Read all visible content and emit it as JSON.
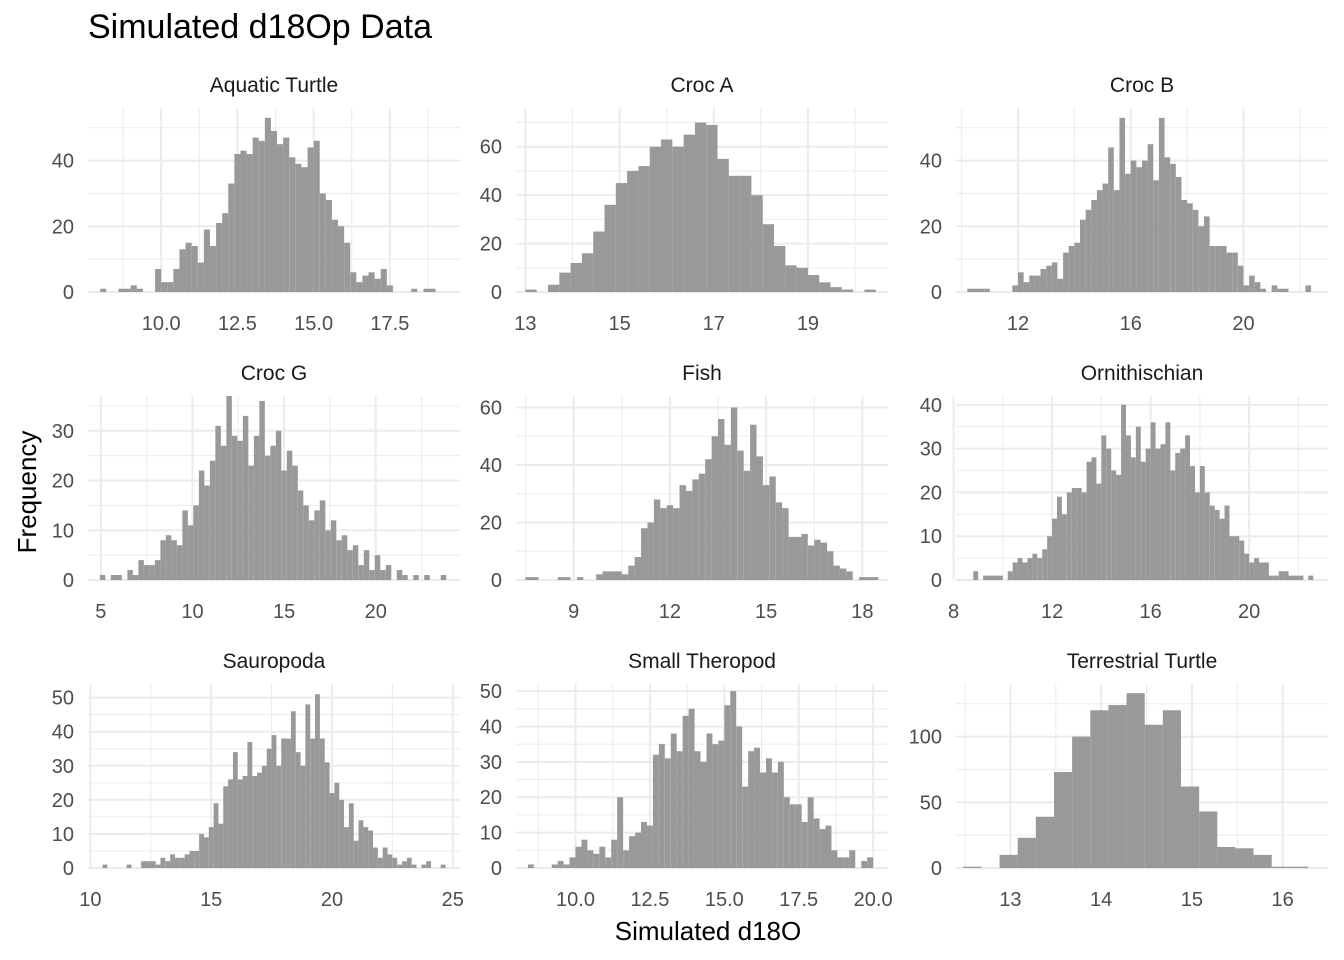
{
  "chart_data": {
    "type": "bar",
    "title": "Simulated d18Op Data",
    "xlabel": "Simulated d18O",
    "ylabel": "Frequency",
    "grid": true,
    "legend": "none",
    "bar_color": "#999999",
    "grid_color": "#ebebeb",
    "panels": [
      {
        "name": "Aquatic Turtle",
        "xlim": [
          7.6,
          19.8
        ],
        "ylim": [
          0,
          56
        ],
        "xticks": [
          10.0,
          12.5,
          15.0,
          17.5
        ],
        "xtick_labels": [
          "10.0",
          "12.5",
          "15.0",
          "17.5"
        ],
        "yticks": [
          0,
          20,
          40
        ],
        "x": [
          8.1,
          8.3,
          8.5,
          8.7,
          8.9,
          9.1,
          9.3,
          9.5,
          9.7,
          9.9,
          10.1,
          10.3,
          10.5,
          10.7,
          10.9,
          11.1,
          11.3,
          11.5,
          11.7,
          11.9,
          12.1,
          12.3,
          12.5,
          12.7,
          12.9,
          13.1,
          13.3,
          13.5,
          13.7,
          13.9,
          14.1,
          14.3,
          14.5,
          14.7,
          14.9,
          15.1,
          15.3,
          15.5,
          15.7,
          15.9,
          16.1,
          16.3,
          16.5,
          16.7,
          16.9,
          17.1,
          17.3,
          17.5,
          17.7,
          17.9,
          18.1,
          18.3,
          18.5,
          18.7,
          18.9,
          19.1,
          19.3
        ],
        "values": [
          1,
          0,
          0,
          1,
          1,
          2,
          1,
          0,
          0,
          7,
          3,
          3,
          7,
          13,
          15,
          14,
          9,
          19,
          14,
          21,
          24,
          33,
          42,
          43,
          42,
          47,
          46,
          53,
          49,
          45,
          47,
          41,
          39,
          38,
          44,
          46,
          30,
          28,
          22,
          20,
          15,
          6,
          3,
          5,
          6,
          4,
          7,
          2,
          0,
          0,
          0,
          1,
          0,
          1,
          1,
          0,
          0
        ],
        "bar_width": 0.2
      },
      {
        "name": "Croc A",
        "xlim": [
          12.8,
          20.7
        ],
        "ylim": [
          0,
          76
        ],
        "xticks": [
          13,
          15,
          17,
          19
        ],
        "xtick_labels": [
          "13",
          "15",
          "17",
          "19"
        ],
        "yticks": [
          0,
          20,
          40,
          60
        ],
        "x": [
          13.12,
          13.36,
          13.6,
          13.84,
          14.08,
          14.32,
          14.56,
          14.8,
          15.04,
          15.28,
          15.52,
          15.76,
          16.0,
          16.24,
          16.48,
          16.72,
          16.96,
          17.2,
          17.44,
          17.68,
          17.92,
          18.16,
          18.4,
          18.64,
          18.88,
          19.12,
          19.36,
          19.6,
          19.84,
          20.08,
          20.32
        ],
        "values": [
          1,
          0,
          3,
          8,
          12,
          16,
          25,
          36,
          45,
          50,
          52,
          60,
          63,
          60,
          65,
          70,
          69,
          55,
          48,
          48,
          40,
          28,
          19,
          11,
          10,
          7,
          4,
          2,
          1,
          0,
          1
        ],
        "bar_width": 0.24
      },
      {
        "name": "Croc B",
        "xlim": [
          9.8,
          23.0
        ],
        "ylim": [
          0,
          56
        ],
        "xticks": [
          12,
          16,
          20
        ],
        "xtick_labels": [
          "12",
          "16",
          "20"
        ],
        "yticks": [
          0,
          20,
          40
        ],
        "x": [
          10.3,
          10.5,
          10.7,
          10.9,
          11.1,
          11.3,
          11.5,
          11.7,
          11.9,
          12.1,
          12.3,
          12.5,
          12.7,
          12.9,
          13.1,
          13.3,
          13.5,
          13.7,
          13.9,
          14.1,
          14.3,
          14.5,
          14.7,
          14.9,
          15.1,
          15.3,
          15.5,
          15.7,
          15.9,
          16.1,
          16.3,
          16.5,
          16.7,
          16.9,
          17.1,
          17.3,
          17.5,
          17.7,
          17.9,
          18.1,
          18.3,
          18.5,
          18.7,
          18.9,
          19.1,
          19.3,
          19.5,
          19.7,
          19.9,
          20.1,
          20.3,
          20.5,
          20.7,
          20.9,
          21.1,
          21.3,
          21.5,
          21.7,
          21.9,
          22.1,
          22.3
        ],
        "values": [
          1,
          1,
          1,
          1,
          0,
          0,
          0,
          0,
          2,
          6,
          3,
          5,
          5,
          7,
          8,
          9,
          4,
          12,
          14,
          15,
          22,
          25,
          28,
          31,
          33,
          44,
          31,
          53,
          36,
          40,
          38,
          40,
          45,
          34,
          53,
          41,
          39,
          35,
          28,
          27,
          25,
          20,
          23,
          14,
          14,
          14,
          12,
          12,
          8,
          2,
          5,
          3,
          1,
          0,
          2,
          1,
          1,
          0,
          0,
          0,
          2
        ],
        "bar_width": 0.2
      },
      {
        "name": "Croc G",
        "xlim": [
          4.3,
          24.6
        ],
        "ylim": [
          0,
          37
        ],
        "xticks": [
          5,
          10,
          15,
          20
        ],
        "xtick_labels": [
          "5",
          "10",
          "15",
          "20"
        ],
        "yticks": [
          0,
          10,
          20,
          30
        ],
        "x": [
          5.1,
          5.4,
          5.7,
          6.0,
          6.3,
          6.6,
          6.9,
          7.2,
          7.5,
          7.8,
          8.1,
          8.4,
          8.7,
          9.0,
          9.3,
          9.6,
          9.9,
          10.2,
          10.5,
          10.8,
          11.1,
          11.4,
          11.7,
          12.0,
          12.3,
          12.6,
          12.9,
          13.2,
          13.5,
          13.8,
          14.1,
          14.4,
          14.7,
          15.0,
          15.3,
          15.6,
          15.9,
          16.2,
          16.5,
          16.8,
          17.1,
          17.4,
          17.7,
          18.0,
          18.3,
          18.6,
          18.9,
          19.2,
          19.5,
          19.8,
          20.1,
          20.4,
          20.7,
          21.0,
          21.3,
          21.6,
          21.9,
          22.2,
          22.5,
          22.8,
          23.1,
          23.4,
          23.7
        ],
        "values": [
          1,
          0,
          1,
          1,
          0,
          2,
          1,
          4,
          3,
          3,
          4,
          8,
          9,
          8,
          7,
          14,
          11,
          15,
          22,
          19,
          24,
          31,
          27,
          37,
          29,
          28,
          33,
          23,
          29,
          36,
          25,
          27,
          30,
          22,
          26,
          23,
          18,
          15,
          12,
          14,
          16,
          10,
          12,
          8,
          9,
          6,
          7,
          3,
          6,
          2,
          5,
          2,
          3,
          0,
          2,
          1,
          0,
          1,
          0,
          1,
          0,
          0,
          1
        ],
        "bar_width": 0.3
      },
      {
        "name": "Fish",
        "xlim": [
          7.2,
          18.8
        ],
        "ylim": [
          0,
          64
        ],
        "xticks": [
          9,
          12,
          15,
          18
        ],
        "xtick_labels": [
          "9",
          "12",
          "15",
          "18"
        ],
        "yticks": [
          0,
          20,
          40,
          60
        ],
        "x": [
          7.6,
          7.8,
          8.0,
          8.2,
          8.4,
          8.6,
          8.8,
          9.0,
          9.2,
          9.4,
          9.6,
          9.8,
          10.0,
          10.2,
          10.4,
          10.6,
          10.8,
          11.0,
          11.2,
          11.4,
          11.6,
          11.8,
          12.0,
          12.2,
          12.4,
          12.6,
          12.8,
          13.0,
          13.2,
          13.4,
          13.6,
          13.8,
          14.0,
          14.2,
          14.4,
          14.6,
          14.8,
          15.0,
          15.2,
          15.4,
          15.6,
          15.8,
          16.0,
          16.2,
          16.4,
          16.6,
          16.8,
          17.0,
          17.2,
          17.4,
          17.6,
          17.8,
          18.0,
          18.2,
          18.4
        ],
        "values": [
          1,
          1,
          0,
          0,
          0,
          1,
          1,
          0,
          1,
          0,
          0,
          2,
          3,
          3,
          3,
          2,
          5,
          8,
          18,
          20,
          28,
          25,
          26,
          25,
          33,
          31,
          35,
          37,
          42,
          50,
          56,
          47,
          60,
          45,
          38,
          54,
          43,
          33,
          36,
          27,
          25,
          15,
          15,
          16,
          12,
          14,
          13,
          10,
          5,
          4,
          3,
          0,
          1,
          1,
          1
        ],
        "bar_width": 0.2
      },
      {
        "name": "Ornithischian",
        "xlim": [
          8.1,
          23.2
        ],
        "ylim": [
          0,
          42
        ],
        "xticks": [
          8,
          12,
          16,
          20
        ],
        "xtick_labels": [
          "8",
          "12",
          "16",
          "20"
        ],
        "yticks": [
          0,
          10,
          20,
          30,
          40
        ],
        "x": [
          8.9,
          9.1,
          9.3,
          9.5,
          9.7,
          9.9,
          10.1,
          10.3,
          10.5,
          10.7,
          10.9,
          11.1,
          11.3,
          11.5,
          11.7,
          11.9,
          12.1,
          12.3,
          12.5,
          12.7,
          12.9,
          13.1,
          13.3,
          13.5,
          13.7,
          13.9,
          14.1,
          14.3,
          14.5,
          14.7,
          14.9,
          15.1,
          15.3,
          15.5,
          15.7,
          15.9,
          16.1,
          16.3,
          16.5,
          16.7,
          16.9,
          17.1,
          17.3,
          17.5,
          17.7,
          17.9,
          18.1,
          18.3,
          18.5,
          18.7,
          18.9,
          19.1,
          19.3,
          19.5,
          19.7,
          19.9,
          20.1,
          20.3,
          20.5,
          20.7,
          20.9,
          21.1,
          21.3,
          21.5,
          21.7,
          21.9,
          22.1,
          22.3,
          22.5
        ],
        "values": [
          2,
          0,
          1,
          1,
          1,
          1,
          0,
          2,
          4,
          5,
          4,
          5,
          6,
          5,
          7,
          10,
          14,
          19,
          15,
          20,
          21,
          21,
          20,
          27,
          28,
          22,
          33,
          30,
          25,
          24,
          40,
          33,
          28,
          35,
          27,
          30,
          36,
          30,
          31,
          36,
          25,
          29,
          30,
          33,
          26,
          20,
          26,
          20,
          17,
          16,
          14,
          17,
          10,
          10,
          9,
          6,
          4,
          5,
          4,
          4,
          1,
          1,
          2,
          2,
          1,
          1,
          1,
          0,
          1
        ],
        "bar_width": 0.2
      },
      {
        "name": "Sauropoda",
        "xlim": [
          9.9,
          25.3
        ],
        "ylim": [
          0,
          54
        ],
        "xticks": [
          10,
          15,
          20,
          25
        ],
        "xtick_labels": [
          "10",
          "15",
          "20",
          "25"
        ],
        "yticks": [
          0,
          10,
          20,
          30,
          40,
          50
        ],
        "x": [
          10.6,
          10.8,
          11.0,
          11.2,
          11.4,
          11.6,
          11.8,
          12.0,
          12.2,
          12.4,
          12.6,
          12.8,
          13.0,
          13.2,
          13.4,
          13.6,
          13.8,
          14.0,
          14.2,
          14.4,
          14.6,
          14.8,
          15.0,
          15.2,
          15.4,
          15.6,
          15.8,
          16.0,
          16.2,
          16.4,
          16.6,
          16.8,
          17.0,
          17.2,
          17.4,
          17.6,
          17.8,
          18.0,
          18.2,
          18.4,
          18.6,
          18.8,
          19.0,
          19.2,
          19.4,
          19.6,
          19.8,
          20.0,
          20.2,
          20.4,
          20.6,
          20.8,
          21.0,
          21.2,
          21.4,
          21.6,
          21.8,
          22.0,
          22.2,
          22.4,
          22.6,
          22.8,
          23.0,
          23.2,
          23.4,
          23.6,
          23.8,
          24.0,
          24.2,
          24.4,
          24.6
        ],
        "values": [
          1,
          0,
          0,
          0,
          0,
          1,
          0,
          0,
          2,
          2,
          2,
          1,
          3,
          2,
          4,
          3,
          3,
          4,
          5,
          5,
          10,
          9,
          12,
          19,
          13,
          24,
          26,
          34,
          26,
          27,
          37,
          27,
          28,
          30,
          35,
          39,
          30,
          38,
          38,
          46,
          34,
          30,
          48,
          38,
          51,
          38,
          31,
          22,
          25,
          20,
          12,
          19,
          8,
          14,
          12,
          11,
          6,
          3,
          6,
          4,
          3,
          1,
          2,
          3,
          1,
          0,
          1,
          2,
          0,
          0,
          1
        ],
        "bar_width": 0.2
      },
      {
        "name": "Small Theropod",
        "xlim": [
          8.0,
          20.5
        ],
        "ylim": [
          0,
          52
        ],
        "xticks": [
          10.0,
          12.5,
          15.0,
          17.5,
          20.0
        ],
        "xtick_labels": [
          "10.0",
          "12.5",
          "15.0",
          "17.5",
          "20.0"
        ],
        "yticks": [
          0,
          10,
          20,
          30,
          40,
          50
        ],
        "x": [
          8.5,
          8.7,
          8.9,
          9.1,
          9.3,
          9.5,
          9.7,
          9.9,
          10.1,
          10.3,
          10.5,
          10.7,
          10.9,
          11.1,
          11.3,
          11.5,
          11.7,
          11.9,
          12.1,
          12.3,
          12.5,
          12.7,
          12.9,
          13.1,
          13.3,
          13.5,
          13.7,
          13.9,
          14.1,
          14.3,
          14.5,
          14.7,
          14.9,
          15.1,
          15.3,
          15.5,
          15.7,
          15.9,
          16.1,
          16.3,
          16.5,
          16.7,
          16.9,
          17.1,
          17.3,
          17.5,
          17.7,
          17.9,
          18.1,
          18.3,
          18.5,
          18.7,
          18.9,
          19.1,
          19.3,
          19.5,
          19.7,
          19.9
        ],
        "values": [
          1,
          0,
          0,
          0,
          1,
          2,
          1,
          3,
          6,
          8,
          5,
          4,
          6,
          3,
          8,
          20,
          5,
          9,
          10,
          13,
          12,
          32,
          35,
          31,
          38,
          33,
          43,
          45,
          33,
          30,
          38,
          35,
          36,
          46,
          50,
          40,
          23,
          33,
          34,
          27,
          31,
          27,
          30,
          20,
          18,
          18,
          13,
          20,
          14,
          11,
          12,
          5,
          3,
          3,
          5,
          0,
          2,
          3
        ],
        "bar_width": 0.2
      },
      {
        "name": "Terrestrial Turtle",
        "xlim": [
          12.4,
          16.5
        ],
        "ylim": [
          0,
          140
        ],
        "xticks": [
          13,
          14,
          15,
          16
        ],
        "xtick_labels": [
          "13",
          "14",
          "15",
          "16"
        ],
        "yticks": [
          0,
          50,
          100
        ],
        "x": [
          12.58,
          12.78,
          12.98,
          13.18,
          13.38,
          13.58,
          13.78,
          13.98,
          14.18,
          14.38,
          14.58,
          14.78,
          14.98,
          15.18,
          15.38,
          15.58,
          15.78,
          15.98,
          16.18
        ],
        "values": [
          1,
          0,
          10,
          23,
          39,
          73,
          100,
          120,
          124,
          133,
          109,
          120,
          62,
          43,
          16,
          15,
          10,
          1,
          1
        ],
        "bar_width": 0.2
      }
    ]
  }
}
